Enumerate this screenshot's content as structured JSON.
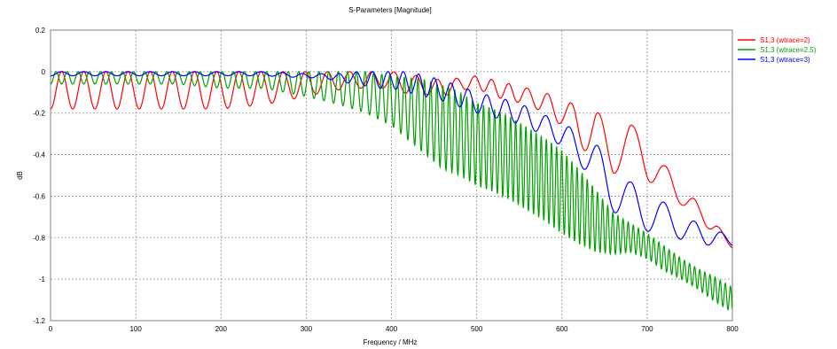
{
  "chart_data": {
    "type": "line",
    "title": "S-Parameters [Magnitude]",
    "xlabel": "Frequency / MHz",
    "ylabel": "dB",
    "xlim": [
      0,
      800
    ],
    "ylim": [
      -1.2,
      0.2
    ],
    "x_ticks": [
      0,
      100,
      200,
      300,
      400,
      500,
      600,
      700,
      800
    ],
    "y_ticks": [
      0.2,
      0,
      -0.2,
      -0.4,
      -0.6,
      -0.8,
      -1,
      -1.2
    ],
    "grid": true,
    "legend_position": "top-right",
    "series": [
      {
        "name": "S1,3 (wtrace=2)",
        "color": "#ff0000",
        "x": [
          0,
          25,
          50,
          100,
          150,
          200,
          250,
          300,
          320,
          350,
          380,
          400,
          420,
          440,
          460,
          480,
          500,
          520,
          540,
          560,
          580,
          600,
          620,
          640,
          660,
          680,
          700,
          720,
          740,
          760,
          780,
          800
        ],
        "y": [
          -0.09,
          -0.09,
          -0.09,
          -0.09,
          -0.09,
          -0.09,
          -0.08,
          -0.06,
          -0.05,
          -0.04,
          -0.04,
          -0.04,
          -0.06,
          -0.07,
          -0.08,
          -0.06,
          -0.05,
          -0.08,
          -0.1,
          -0.12,
          -0.15,
          -0.2,
          -0.26,
          -0.3,
          -0.4,
          -0.33,
          -0.42,
          -0.52,
          -0.58,
          -0.68,
          -0.75,
          -0.85
        ],
        "oscillation": [
          0.09,
          0.09,
          0.09,
          0.09,
          0.09,
          0.09,
          0.08,
          0.06,
          0.05,
          0.04,
          0.04,
          0.04,
          0.05,
          0.04,
          0.04,
          0.03,
          0.03,
          0.04,
          0.04,
          0.04,
          0.05,
          0.06,
          0.1,
          0.12,
          0.1,
          0.08,
          0.1,
          0.07,
          0.06,
          0.04,
          0.03,
          0.0
        ],
        "period": [
          26,
          26,
          26,
          26,
          26,
          26,
          26,
          26,
          26,
          26,
          26,
          26,
          26,
          26,
          22,
          22,
          20,
          20,
          20,
          24,
          24,
          28,
          32,
          36,
          40,
          40,
          40,
          36,
          36,
          30,
          30,
          30
        ]
      },
      {
        "name": "S1,3 (wtrace=2.5)",
        "color": "#00a000",
        "x": [
          0,
          50,
          100,
          150,
          200,
          250,
          300,
          340,
          370,
          400,
          420,
          440,
          460,
          480,
          500,
          520,
          540,
          560,
          580,
          600,
          620,
          640,
          660,
          680,
          700,
          720,
          740,
          760,
          780,
          800
        ],
        "y": [
          -0.03,
          -0.03,
          -0.03,
          -0.03,
          -0.04,
          -0.04,
          -0.06,
          -0.08,
          -0.1,
          -0.14,
          -0.18,
          -0.22,
          -0.27,
          -0.3,
          -0.35,
          -0.38,
          -0.42,
          -0.47,
          -0.52,
          -0.58,
          -0.65,
          -0.72,
          -0.78,
          -0.8,
          -0.84,
          -0.9,
          -0.95,
          -1.0,
          -1.05,
          -1.1
        ],
        "oscillation": [
          0.03,
          0.03,
          0.03,
          0.03,
          0.04,
          0.04,
          0.06,
          0.08,
          0.1,
          0.12,
          0.15,
          0.18,
          0.2,
          0.2,
          0.2,
          0.2,
          0.2,
          0.2,
          0.2,
          0.2,
          0.18,
          0.15,
          0.1,
          0.07,
          0.06,
          0.06,
          0.05,
          0.05,
          0.06,
          0.06
        ],
        "period": [
          13,
          13,
          13,
          13,
          13,
          13,
          12,
          11,
          10,
          9,
          8,
          7.5,
          7,
          7,
          6.5,
          6.5,
          6,
          6,
          6,
          6,
          6,
          6,
          6,
          6,
          6,
          6,
          6,
          6,
          6,
          6
        ]
      },
      {
        "name": "S1,3 (wtrace=3)",
        "color": "#0000ff",
        "x": [
          0,
          100,
          200,
          250,
          300,
          320,
          340,
          360,
          380,
          400,
          420,
          440,
          460,
          480,
          500,
          520,
          540,
          560,
          580,
          600,
          620,
          640,
          660,
          680,
          700,
          720,
          740,
          760,
          780,
          800
        ],
        "y": [
          -0.01,
          -0.01,
          -0.01,
          -0.01,
          -0.02,
          -0.02,
          -0.03,
          -0.03,
          -0.04,
          -0.04,
          -0.05,
          -0.07,
          -0.09,
          -0.12,
          -0.15,
          -0.17,
          -0.19,
          -0.22,
          -0.26,
          -0.3,
          -0.37,
          -0.45,
          -0.55,
          -0.65,
          -0.67,
          -0.7,
          -0.75,
          -0.78,
          -0.8,
          -0.82
        ],
        "oscillation": [
          0.01,
          0.01,
          0.01,
          0.01,
          0.01,
          0.01,
          0.02,
          0.03,
          0.04,
          0.04,
          0.05,
          0.05,
          0.05,
          0.05,
          0.05,
          0.05,
          0.05,
          0.05,
          0.05,
          0.06,
          0.07,
          0.1,
          0.12,
          0.12,
          0.1,
          0.07,
          0.06,
          0.05,
          0.04,
          0.02
        ],
        "period": [
          26,
          26,
          26,
          26,
          22,
          22,
          20,
          20,
          18,
          18,
          18,
          18,
          20,
          20,
          22,
          22,
          22,
          24,
          26,
          28,
          32,
          36,
          40,
          40,
          40,
          36,
          36,
          32,
          32,
          30
        ]
      }
    ]
  }
}
